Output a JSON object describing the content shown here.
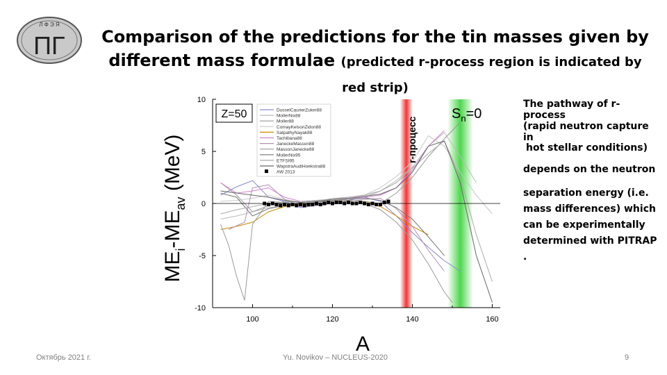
{
  "logo": {
    "top_text": "Л Ф Э Я",
    "glyph": "ПΓ"
  },
  "title": {
    "line1": "Comparison of the predictions for the tin masses given by",
    "line2_main": "different mass formulae",
    "line2_small": "(predicted r-process region is indicated by red strip)"
  },
  "side_text": {
    "line1": "The pathway of r-process",
    "line2": "(rapid neutron capture in",
    "line3": "hot stellar conditions)",
    "line4": "depends on the neutron",
    "para": [
      "separation energy (i.e.",
      "mass differences)  which",
      "can be experimentally",
      "determined with PITRAP ."
    ]
  },
  "footer": {
    "date": "Октябрь 2021 г.",
    "author": "Yu. Novikov – NUCLEUS-2020",
    "page": "9"
  },
  "chart_data": {
    "type": "line",
    "title": "",
    "xlabel": "A",
    "ylabel": "ME_i-ME_av (MeV)",
    "xlim": [
      90,
      162
    ],
    "ylim": [
      -10,
      10
    ],
    "x_ticks": [
      "100",
      "120",
      "140",
      "160"
    ],
    "y_ticks": [
      "10",
      "5",
      "0",
      "-5",
      "-10"
    ],
    "legend_title": "Z=50",
    "legend_placement": "top-left",
    "r_process_label": "r-процесс",
    "sn_label": "S",
    "sn_sub": "n",
    "sn_eq": "=0",
    "r_process_band": [
      137,
      140
    ],
    "sn0_band": [
      149,
      155
    ],
    "colors": {
      "red_band": "#ee1111",
      "green_band": "#22cc22"
    },
    "series": [
      {
        "name": "DusselCaurierZuker88",
        "color": "#8a8ad0",
        "x": [
          92,
          96,
          100,
          104,
          108,
          112,
          116,
          120,
          124,
          128,
          132,
          136,
          140,
          144,
          148,
          152
        ],
        "y": [
          0.8,
          1.6,
          2.2,
          0.6,
          0.2,
          -0.4,
          -0.2,
          0.1,
          0.3,
          0.6,
          0.2,
          -1.2,
          -2.8,
          -4.2,
          -5.5,
          -6.5
        ]
      },
      {
        "name": "MollerNix88",
        "color": "#bbbbbb",
        "x": [
          92,
          96,
          100,
          104,
          108,
          112,
          116,
          120,
          124,
          128,
          132,
          136,
          140,
          144,
          148,
          152,
          156
        ],
        "y": [
          -1.5,
          -1.2,
          -0.8,
          -0.4,
          -0.2,
          0.1,
          0.2,
          0.3,
          0.4,
          0.6,
          1.2,
          2.2,
          3.5,
          5.5,
          6.8,
          4.5,
          2.0
        ]
      },
      {
        "name": "Moller88",
        "color": "#999999",
        "x": [
          92,
          96,
          100,
          104,
          108,
          112,
          116,
          120,
          124,
          128,
          132,
          136,
          140,
          144,
          148,
          150
        ],
        "y": [
          2.0,
          0.8,
          -0.8,
          -0.2,
          0.2,
          0.1,
          -0.1,
          0.3,
          0.2,
          0.0,
          -0.6,
          -1.8,
          -3.5,
          -5.8,
          -8.5,
          -9.5
        ]
      },
      {
        "name": "ComayKelsonZidon88",
        "color": "#c8c8c8",
        "x": [
          92,
          96,
          100,
          104,
          108,
          112,
          116,
          120,
          124,
          128,
          132,
          136,
          140,
          144,
          148,
          152,
          156,
          160
        ],
        "y": [
          0.2,
          0.3,
          0.5,
          0.8,
          0.4,
          0.1,
          0.2,
          0.5,
          0.6,
          0.8,
          1.5,
          2.6,
          4.0,
          6.5,
          5.5,
          3.0,
          0.8,
          -1.0
        ]
      },
      {
        "name": "SatpathyNayak88",
        "color": "#cc8800",
        "x": [
          92,
          96,
          100,
          104,
          108,
          112,
          116,
          120,
          124,
          128,
          132,
          136,
          140,
          144
        ],
        "y": [
          -2.5,
          -2.2,
          -1.8,
          -0.8,
          -0.3,
          -0.1,
          0.0,
          0.2,
          0.3,
          0.2,
          -0.3,
          -1.2,
          -2.2,
          -3.0
        ]
      },
      {
        "name": "Tachibana88",
        "color": "#d080d0",
        "x": [
          92,
          96,
          100,
          104,
          108,
          112,
          116,
          120,
          124,
          128,
          132,
          136,
          140,
          144,
          148
        ],
        "y": [
          2.0,
          1.0,
          1.2,
          1.5,
          0.6,
          0.2,
          0.3,
          0.4,
          0.5,
          0.6,
          0.8,
          1.5,
          3.2,
          5.5,
          7.0
        ]
      },
      {
        "name": "JaneckeMasson88",
        "color": "#b090b0",
        "x": [
          94,
          98,
          100,
          104,
          108,
          112,
          116,
          120,
          124,
          128,
          132,
          136,
          140,
          144,
          148
        ],
        "y": [
          -2.5,
          -1.8,
          1.5,
          1.8,
          0.4,
          -0.3,
          -0.2,
          0.0,
          0.2,
          0.4,
          0.5,
          -0.5,
          -2.2,
          -4.5,
          -6.5
        ]
      },
      {
        "name": "MassonJanecke88",
        "color": "#999999",
        "x": [
          92,
          94,
          96,
          98,
          100,
          104,
          108,
          112,
          116,
          120,
          124,
          128,
          132,
          136,
          140,
          144,
          148,
          152
        ],
        "y": [
          -2.0,
          -4.0,
          -7.0,
          -9.3,
          -2.0,
          0.2,
          0.1,
          -0.2,
          0.0,
          0.2,
          0.3,
          0.2,
          0.0,
          1.0,
          2.5,
          4.5,
          6.2,
          7.8
        ]
      },
      {
        "name": "MollerNix95",
        "color": "#777777",
        "x": [
          92,
          96,
          100,
          104,
          108,
          112,
          116,
          120,
          124,
          128,
          132,
          136,
          140,
          144,
          148
        ],
        "y": [
          1.0,
          0.6,
          -1.2,
          -0.5,
          -0.2,
          0.0,
          0.1,
          0.3,
          0.4,
          0.5,
          0.3,
          -0.4,
          -1.5,
          -3.2,
          -5.0
        ]
      },
      {
        "name": "ETFSI95",
        "color": "#aaaaaa",
        "x": [
          92,
          96,
          100,
          104,
          108,
          112,
          116,
          120,
          124,
          128,
          132,
          136,
          140,
          144,
          148,
          152,
          156,
          160
        ],
        "y": [
          -1.0,
          -0.6,
          -0.3,
          0.0,
          0.1,
          0.2,
          0.3,
          0.4,
          0.6,
          0.8,
          1.2,
          2.0,
          3.4,
          4.8,
          6.0,
          2.5,
          -3.0,
          -7.5
        ]
      },
      {
        "name": "WapstraAudiHoekstra88",
        "color": "#666666",
        "x": [
          92,
          96,
          100,
          104,
          108,
          112,
          116,
          120,
          124,
          128,
          132,
          136,
          140,
          144,
          148,
          152,
          156,
          160
        ],
        "y": [
          1.2,
          1.0,
          0.8,
          0.6,
          0.3,
          0.1,
          0.2,
          0.4,
          0.5,
          0.7,
          0.9,
          1.5,
          3.0,
          5.5,
          6.0,
          2.0,
          -5.0,
          -9.5
        ]
      }
    ],
    "markers": {
      "name": "AW 2013",
      "color": "#000000",
      "x": [
        103,
        104,
        105,
        106,
        107,
        108,
        109,
        110,
        111,
        112,
        113,
        114,
        115,
        116,
        117,
        118,
        119,
        120,
        121,
        122,
        123,
        124,
        125,
        126,
        127,
        128,
        129,
        130,
        131,
        132,
        133,
        134
      ],
      "y": [
        0.0,
        -0.1,
        0.0,
        -0.1,
        -0.2,
        -0.1,
        -0.2,
        -0.1,
        -0.2,
        -0.1,
        -0.2,
        -0.1,
        -0.1,
        0.0,
        -0.1,
        0.0,
        0.1,
        0.0,
        0.1,
        0.1,
        0.0,
        0.1,
        0.0,
        0.0,
        0.1,
        0.0,
        -0.1,
        0.0,
        -0.1,
        -0.1,
        0.1,
        0.2
      ]
    }
  }
}
